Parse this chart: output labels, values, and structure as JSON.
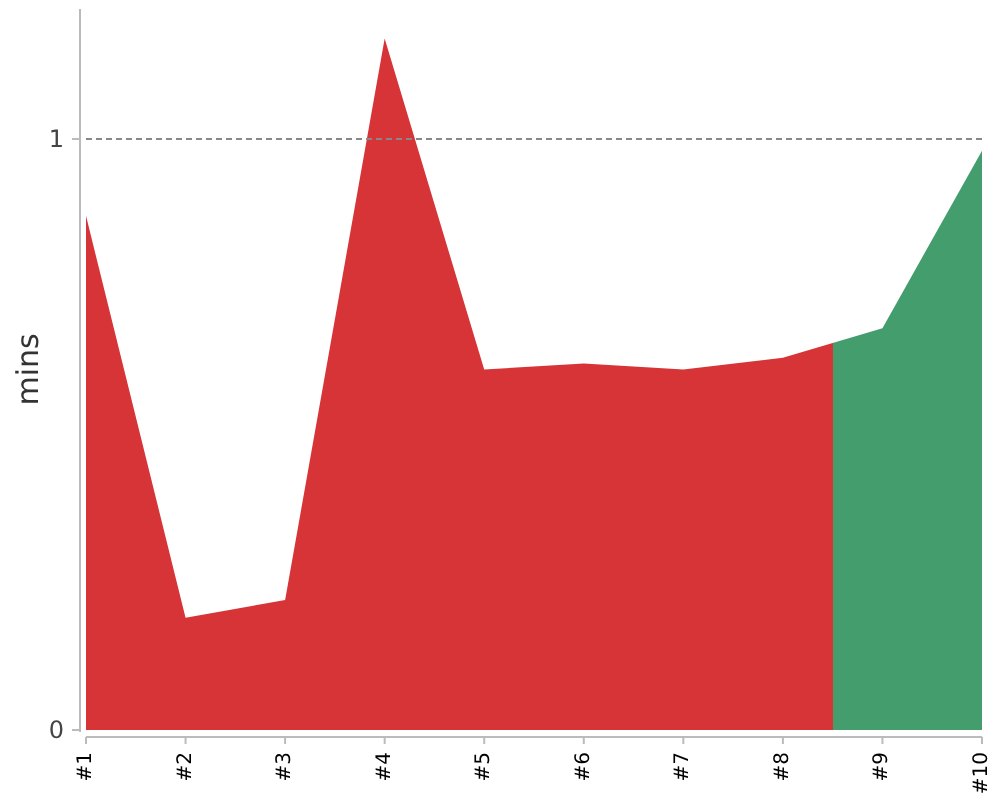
{
  "chart_data": {
    "type": "area",
    "ylabel": "mins",
    "categories": [
      "#1",
      "#2",
      "#3",
      "#4",
      "#5",
      "#6",
      "#7",
      "#8",
      "#9",
      "#10"
    ],
    "values": [
      0.87,
      0.19,
      0.22,
      1.17,
      0.61,
      0.62,
      0.61,
      0.63,
      0.68,
      0.98
    ],
    "colors": [
      "#d63437",
      "#d63437",
      "#d63437",
      "#d63437",
      "#d63437",
      "#d63437",
      "#d63437",
      "#d63437",
      "#449d6d",
      "#449d6d"
    ],
    "ylim": [
      0,
      1.22
    ],
    "yticks": [
      0,
      1
    ],
    "ref_lines": [
      {
        "axis": "y",
        "value": 1,
        "color": "#888888",
        "line_style": "dashed"
      }
    ]
  }
}
